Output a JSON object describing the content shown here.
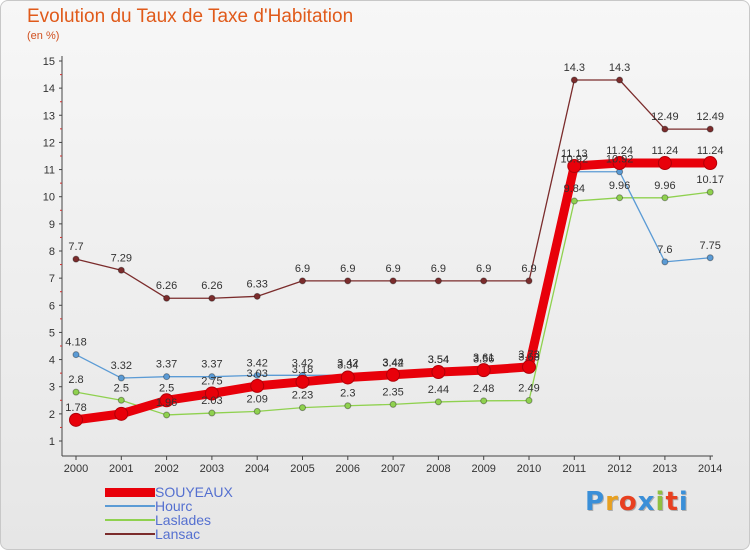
{
  "chart_data": {
    "type": "line",
    "title": "Evolution du Taux de Taxe d'Habitation",
    "subtitle": "(en %)",
    "categories": [
      "2000",
      "2001",
      "2002",
      "2003",
      "2004",
      "2005",
      "2006",
      "2007",
      "2008",
      "2009",
      "2010",
      "2011",
      "2012",
      "2013",
      "2014"
    ],
    "ylim": [
      1,
      15
    ],
    "yticks": [
      "1",
      "2",
      "3",
      "4",
      "5",
      "6",
      "7",
      "8",
      "9",
      "10",
      "11",
      "12",
      "13",
      "14",
      "15"
    ],
    "grid": false,
    "legend_position": "bottom-left",
    "series": [
      {
        "name": "SOUYEAUX",
        "color": "#e8000a",
        "values": [
          1.78,
          2.0,
          2.5,
          2.75,
          3.03,
          3.18,
          3.34,
          3.44,
          3.54,
          3.61,
          3.73,
          11.13,
          11.24,
          11.24,
          11.24
        ],
        "labels": [
          "1.78",
          "",
          "2.5",
          "2.75",
          "3.03",
          "3.18",
          "3.34",
          "3.44",
          "3.54",
          "3.61",
          "3.73",
          "11.13",
          "11.24",
          "11.24",
          "11.24"
        ]
      },
      {
        "name": "Hourc",
        "color": "#5b9bd5",
        "values": [
          4.18,
          3.32,
          3.37,
          3.37,
          3.42,
          3.42,
          3.42,
          3.42,
          3.54,
          3.56,
          3.63,
          10.92,
          10.92,
          7.6,
          7.75
        ],
        "labels": [
          "4.18",
          "3.32",
          "3.37",
          "3.37",
          "3.42",
          "3.42",
          "3.42",
          "3.42",
          "3.54",
          "3.56",
          "3.63",
          "10.92",
          "10.92",
          "7.6",
          "7.75"
        ]
      },
      {
        "name": "Laslades",
        "color": "#8fd14f",
        "values": [
          2.8,
          2.5,
          1.96,
          2.03,
          2.09,
          2.23,
          2.3,
          2.35,
          2.44,
          2.48,
          2.49,
          9.84,
          9.96,
          9.96,
          10.17
        ],
        "labels": [
          "2.8",
          "2.5",
          "1.96",
          "2.03",
          "2.09",
          "2.23",
          "2.3",
          "2.35",
          "2.44",
          "2.48",
          "2.49",
          "9.84",
          "9.96",
          "9.96",
          "10.17"
        ]
      },
      {
        "name": "Lansac",
        "color": "#7b2c2c",
        "values": [
          7.7,
          7.29,
          6.26,
          6.26,
          6.33,
          6.9,
          6.9,
          6.9,
          6.9,
          6.9,
          6.9,
          14.3,
          14.3,
          12.49,
          12.49
        ],
        "labels": [
          "7.7",
          "7.29",
          "6.26",
          "6.26",
          "6.33",
          "6.9",
          "6.9",
          "6.9",
          "6.9",
          "6.9",
          "6.9",
          "14.3",
          "14.3",
          "12.49",
          "12.49"
        ]
      }
    ]
  },
  "legend": [
    {
      "label": "SOUYEAUX",
      "color": "#e8000a"
    },
    {
      "label": "Hourc",
      "color": "#5b9bd5"
    },
    {
      "label": "Laslades",
      "color": "#8fd14f"
    },
    {
      "label": "Lansac",
      "color": "#7b2c2c"
    }
  ],
  "logo": {
    "text": "Proxiti",
    "colors": [
      "#3a8fd8",
      "#e8a020",
      "#e84020",
      "#3a8fd8",
      "#8fc040",
      "#e84020",
      "#3a8fd8"
    ]
  }
}
